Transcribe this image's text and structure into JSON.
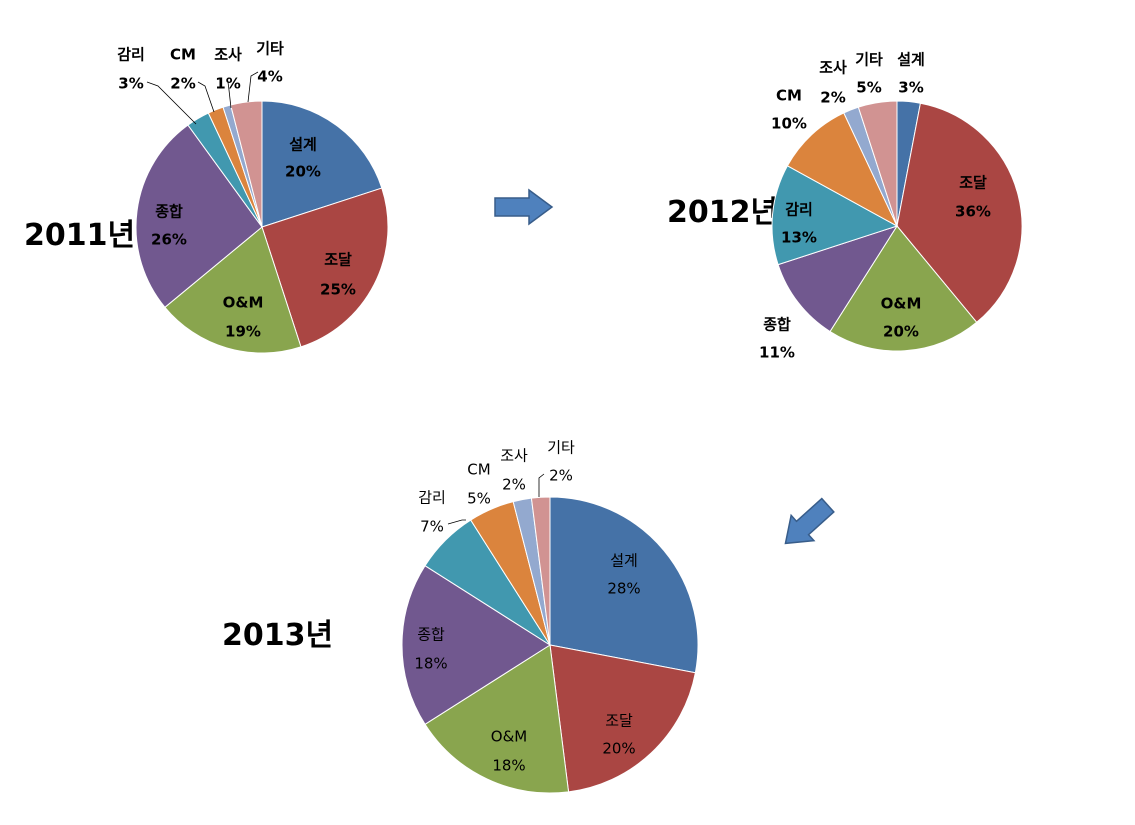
{
  "chart_data": [
    {
      "type": "pie",
      "title": "2011년",
      "slices": [
        {
          "label": "설계",
          "value": 20,
          "pct": "20%",
          "color": "#4572A7"
        },
        {
          "label": "조달",
          "value": 25,
          "pct": "25%",
          "color": "#AA4643"
        },
        {
          "label": "O&M",
          "value": 19,
          "pct": "19%",
          "color": "#89A54E"
        },
        {
          "label": "종합",
          "value": 26,
          "pct": "26%",
          "color": "#71588F"
        },
        {
          "label": "감리",
          "value": 3,
          "pct": "3%",
          "color": "#4198AF"
        },
        {
          "label": "CM",
          "value": 2,
          "pct": "2%",
          "color": "#DB843D"
        },
        {
          "label": "조사",
          "value": 1,
          "pct": "1%",
          "color": "#93A9CF"
        },
        {
          "label": "기타",
          "value": 4,
          "pct": "4%",
          "color": "#D19392"
        }
      ]
    },
    {
      "type": "pie",
      "title": "2012년",
      "slices": [
        {
          "label": "설계",
          "value": 3,
          "pct": "3%",
          "color": "#4572A7"
        },
        {
          "label": "조달",
          "value": 36,
          "pct": "36%",
          "color": "#AA4643"
        },
        {
          "label": "O&M",
          "value": 20,
          "pct": "20%",
          "color": "#89A54E"
        },
        {
          "label": "종합",
          "value": 11,
          "pct": "11%",
          "color": "#71588F"
        },
        {
          "label": "감리",
          "value": 13,
          "pct": "13%",
          "color": "#4198AF"
        },
        {
          "label": "CM",
          "value": 10,
          "pct": "10%",
          "color": "#DB843D"
        },
        {
          "label": "조사",
          "value": 2,
          "pct": "2%",
          "color": "#93A9CF"
        },
        {
          "label": "기타",
          "value": 5,
          "pct": "5%",
          "color": "#D19392"
        }
      ]
    },
    {
      "type": "pie",
      "title": "2013년",
      "slices": [
        {
          "label": "설계",
          "value": 28,
          "pct": "28%",
          "color": "#4572A7"
        },
        {
          "label": "조달",
          "value": 20,
          "pct": "20%",
          "color": "#AA4643"
        },
        {
          "label": "O&M",
          "value": 18,
          "pct": "18%",
          "color": "#89A54E"
        },
        {
          "label": "종합",
          "value": 18,
          "pct": "18%",
          "color": "#71588F"
        },
        {
          "label": "감리",
          "value": 7,
          "pct": "7%",
          "color": "#4198AF"
        },
        {
          "label": "CM",
          "value": 5,
          "pct": "5%",
          "color": "#DB843D"
        },
        {
          "label": "조사",
          "value": 2,
          "pct": "2%",
          "color": "#93A9CF"
        },
        {
          "label": "기타",
          "value": 2,
          "pct": "2%",
          "color": "#D19392"
        }
      ]
    }
  ],
  "arrow_color": "#4F81BD"
}
